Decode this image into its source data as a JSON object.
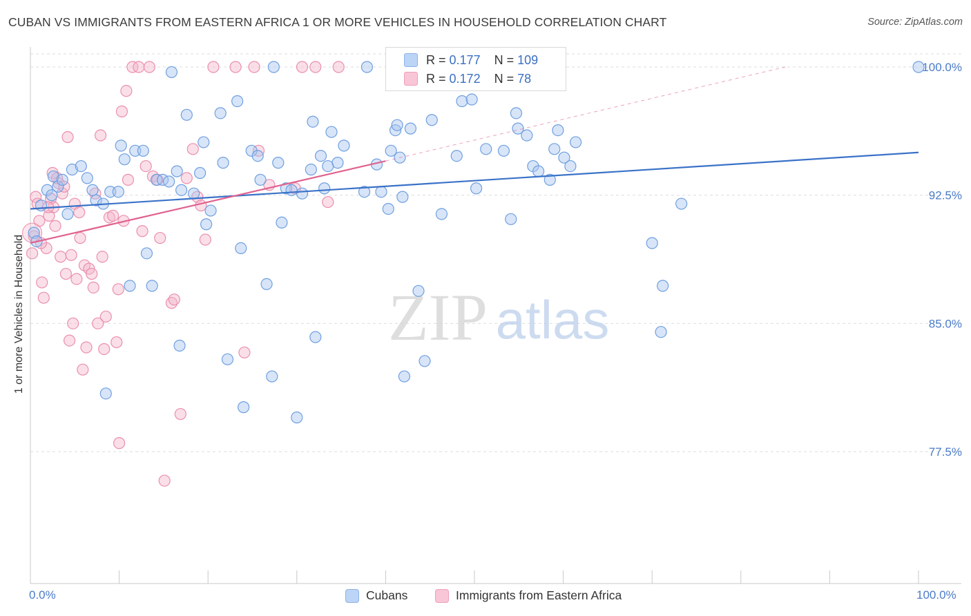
{
  "title": "CUBAN VS IMMIGRANTS FROM EASTERN AFRICA 1 OR MORE VEHICLES IN HOUSEHOLD CORRELATION CHART",
  "source": "Source: ZipAtlas.com",
  "watermark": {
    "zip": "ZIP",
    "atlas": "atlas"
  },
  "colors": {
    "cuban_fill": "#a9c6f0",
    "cuban_stroke": "#6f9fe0",
    "cuban_line": "#3a72c8",
    "eaf_fill": "#f5b8cb",
    "eaf_stroke": "#ea8fad",
    "eaf_line": "#e0628f",
    "axis_text": "#4a7cc9",
    "grid": "#dddddd"
  },
  "stats": {
    "cuban": {
      "r_label": "R =",
      "r_value": "0.177",
      "n_label": "N =",
      "n_value": "109"
    },
    "eaf": {
      "r_label": "R =",
      "r_value": "0.172",
      "n_label": "N =",
      "n_value": "78"
    }
  },
  "chart_data": {
    "type": "scatter",
    "title": "CUBAN VS IMMIGRANTS FROM EASTERN AFRICA 1 OR MORE VEHICLES IN HOUSEHOLD CORRELATION CHART",
    "xlabel": "",
    "ylabel": "1 or more Vehicles in Household",
    "xlim": [
      0,
      100
    ],
    "ylim": [
      70.0,
      101.0
    ],
    "x_tick_labels": [
      "0.0%",
      "100.0%"
    ],
    "y_ticks": [
      {
        "value": 100.0,
        "label": "100.0%"
      },
      {
        "value": 92.5,
        "label": "92.5%"
      },
      {
        "value": 85.0,
        "label": "85.0%"
      },
      {
        "value": 77.5,
        "label": "77.5%"
      }
    ],
    "legend": [
      "Cubans",
      "Immigrants from Eastern Africa"
    ],
    "series": [
      {
        "name": "Cubans",
        "trend": {
          "x": [
            0,
            100
          ],
          "y": [
            91.7,
            95.0
          ]
        },
        "points": [
          [
            0.4,
            90.3
          ],
          [
            0.7,
            89.8
          ],
          [
            1.2,
            91.9
          ],
          [
            1.9,
            92.8
          ],
          [
            2.4,
            92.5
          ],
          [
            2.6,
            93.6
          ],
          [
            3.1,
            93.0
          ],
          [
            3.6,
            93.4
          ],
          [
            4.2,
            91.4
          ],
          [
            4.7,
            94.0
          ],
          [
            5.7,
            94.2
          ],
          [
            6.4,
            93.5
          ],
          [
            7.0,
            92.8
          ],
          [
            7.4,
            92.2
          ],
          [
            8.2,
            92.0
          ],
          [
            8.5,
            80.9
          ],
          [
            9.0,
            92.7
          ],
          [
            9.9,
            92.7
          ],
          [
            10.2,
            95.4
          ],
          [
            10.6,
            94.6
          ],
          [
            11.2,
            87.2
          ],
          [
            11.8,
            95.1
          ],
          [
            12.7,
            95.1
          ],
          [
            13.1,
            89.1
          ],
          [
            13.7,
            87.2
          ],
          [
            14.2,
            93.4
          ],
          [
            14.9,
            93.4
          ],
          [
            15.6,
            93.3
          ],
          [
            15.9,
            99.7
          ],
          [
            16.5,
            93.9
          ],
          [
            16.8,
            83.7
          ],
          [
            17.0,
            92.8
          ],
          [
            17.6,
            97.2
          ],
          [
            18.4,
            92.6
          ],
          [
            19.1,
            93.8
          ],
          [
            19.5,
            95.6
          ],
          [
            19.8,
            90.8
          ],
          [
            20.3,
            91.6
          ],
          [
            21.4,
            97.3
          ],
          [
            21.7,
            94.4
          ],
          [
            22.2,
            82.9
          ],
          [
            23.3,
            98.0
          ],
          [
            23.7,
            89.4
          ],
          [
            24.0,
            80.1
          ],
          [
            24.9,
            95.1
          ],
          [
            25.6,
            94.8
          ],
          [
            25.9,
            93.4
          ],
          [
            26.6,
            87.3
          ],
          [
            27.2,
            81.9
          ],
          [
            27.4,
            100.0
          ],
          [
            27.9,
            94.4
          ],
          [
            28.3,
            90.9
          ],
          [
            28.8,
            92.9
          ],
          [
            29.4,
            92.8
          ],
          [
            30.0,
            79.5
          ],
          [
            30.6,
            92.6
          ],
          [
            31.6,
            94.0
          ],
          [
            31.8,
            96.8
          ],
          [
            32.1,
            84.2
          ],
          [
            32.7,
            94.8
          ],
          [
            33.1,
            92.9
          ],
          [
            33.5,
            94.2
          ],
          [
            33.9,
            96.2
          ],
          [
            34.6,
            94.4
          ],
          [
            35.3,
            95.4
          ],
          [
            37.6,
            92.7
          ],
          [
            37.9,
            100.0
          ],
          [
            39.0,
            94.3
          ],
          [
            39.5,
            92.7
          ],
          [
            40.3,
            91.7
          ],
          [
            40.6,
            95.1
          ],
          [
            41.1,
            96.3
          ],
          [
            41.3,
            96.6
          ],
          [
            41.6,
            94.7
          ],
          [
            41.9,
            92.4
          ],
          [
            42.1,
            81.9
          ],
          [
            42.8,
            96.4
          ],
          [
            43.7,
            86.9
          ],
          [
            44.4,
            82.8
          ],
          [
            45.2,
            96.9
          ],
          [
            46.3,
            91.4
          ],
          [
            47.3,
            99.3
          ],
          [
            48.0,
            94.8
          ],
          [
            48.6,
            98.0
          ],
          [
            49.7,
            98.1
          ],
          [
            50.2,
            92.9
          ],
          [
            51.3,
            95.2
          ],
          [
            53.3,
            95.1
          ],
          [
            54.1,
            91.1
          ],
          [
            54.7,
            97.3
          ],
          [
            54.9,
            96.4
          ],
          [
            55.9,
            96.0
          ],
          [
            56.6,
            94.2
          ],
          [
            57.2,
            93.9
          ],
          [
            58.5,
            93.4
          ],
          [
            59.0,
            95.2
          ],
          [
            59.4,
            96.3
          ],
          [
            60.1,
            94.7
          ],
          [
            60.8,
            94.2
          ],
          [
            61.4,
            95.6
          ],
          [
            70.0,
            89.7
          ],
          [
            71.0,
            84.5
          ],
          [
            71.2,
            87.2
          ],
          [
            73.3,
            92.0
          ],
          [
            100.0,
            100.0
          ]
        ]
      },
      {
        "name": "Immigrants from Eastern Africa",
        "trend": {
          "x": [
            0,
            40
          ],
          "y": [
            89.7,
            94.5
          ]
        },
        "trend_extension": {
          "x": [
            40,
            85
          ],
          "y": [
            94.5,
            100.0
          ]
        },
        "points": [
          [
            0.2,
            89.1
          ],
          [
            0.4,
            90.1
          ],
          [
            0.6,
            92.4
          ],
          [
            0.8,
            92.0
          ],
          [
            1.0,
            91.0
          ],
          [
            1.3,
            87.4
          ],
          [
            1.5,
            86.5
          ],
          [
            1.8,
            89.4
          ],
          [
            2.1,
            91.3
          ],
          [
            2.3,
            92.3
          ],
          [
            2.5,
            93.8
          ],
          [
            2.6,
            91.8
          ],
          [
            2.8,
            90.7
          ],
          [
            3.2,
            93.2
          ],
          [
            3.4,
            88.9
          ],
          [
            3.6,
            92.6
          ],
          [
            3.8,
            93.0
          ],
          [
            4.0,
            87.9
          ],
          [
            4.2,
            95.9
          ],
          [
            4.4,
            84.0
          ],
          [
            4.6,
            89.0
          ],
          [
            4.8,
            85.0
          ],
          [
            5.0,
            92.0
          ],
          [
            5.2,
            87.6
          ],
          [
            5.5,
            91.5
          ],
          [
            5.6,
            90.0
          ],
          [
            5.9,
            82.3
          ],
          [
            6.1,
            88.4
          ],
          [
            6.3,
            83.6
          ],
          [
            6.6,
            88.2
          ],
          [
            6.9,
            87.9
          ],
          [
            7.1,
            87.1
          ],
          [
            7.3,
            92.6
          ],
          [
            7.6,
            85.0
          ],
          [
            7.9,
            96.0
          ],
          [
            8.1,
            88.9
          ],
          [
            8.3,
            83.5
          ],
          [
            8.5,
            85.4
          ],
          [
            8.9,
            91.2
          ],
          [
            9.3,
            91.3
          ],
          [
            9.7,
            83.9
          ],
          [
            9.9,
            87.0
          ],
          [
            10.3,
            97.4
          ],
          [
            10.5,
            91.0
          ],
          [
            10.8,
            98.6
          ],
          [
            11.0,
            93.4
          ],
          [
            11.5,
            100.0
          ],
          [
            12.2,
            100.0
          ],
          [
            12.6,
            90.4
          ],
          [
            13.0,
            94.2
          ],
          [
            13.4,
            100.0
          ],
          [
            13.8,
            93.6
          ],
          [
            14.3,
            93.4
          ],
          [
            14.6,
            90.0
          ],
          [
            15.1,
            75.8
          ],
          [
            15.9,
            86.2
          ],
          [
            16.2,
            86.4
          ],
          [
            16.9,
            79.7
          ],
          [
            17.6,
            93.5
          ],
          [
            18.3,
            95.2
          ],
          [
            18.8,
            92.4
          ],
          [
            19.2,
            91.9
          ],
          [
            19.7,
            89.9
          ],
          [
            20.6,
            100.0
          ],
          [
            23.1,
            100.0
          ],
          [
            24.1,
            83.3
          ],
          [
            25.2,
            100.0
          ],
          [
            25.7,
            95.1
          ],
          [
            26.9,
            93.1
          ],
          [
            29.8,
            92.9
          ],
          [
            30.6,
            100.0
          ],
          [
            32.1,
            100.0
          ],
          [
            33.5,
            92.1
          ],
          [
            34.7,
            100.0
          ],
          [
            10.0,
            78.0
          ],
          [
            3.0,
            93.5
          ],
          [
            2.0,
            91.8
          ],
          [
            1.2,
            89.7
          ]
        ]
      }
    ]
  }
}
